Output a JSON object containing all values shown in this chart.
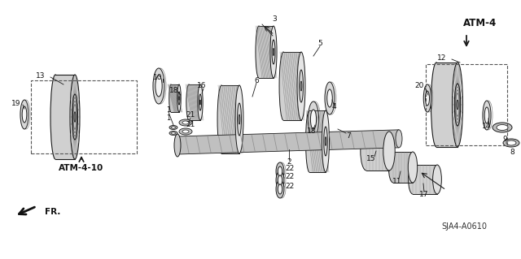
{
  "bg_color": "#ffffff",
  "fig_width": 6.4,
  "fig_height": 3.19,
  "dpi": 100,
  "diagram_label": "SJA4-A0610",
  "atm4_label": "ATM-4",
  "atm4_10_label": "ATM-4-10",
  "fr_label": "FR.",
  "line_color": "#1a1a1a",
  "hatch_color": "#333333",
  "part_color_light": "#e8e8e8",
  "part_color_mid": "#c8c8c8",
  "part_color_dark": "#a0a0a0"
}
